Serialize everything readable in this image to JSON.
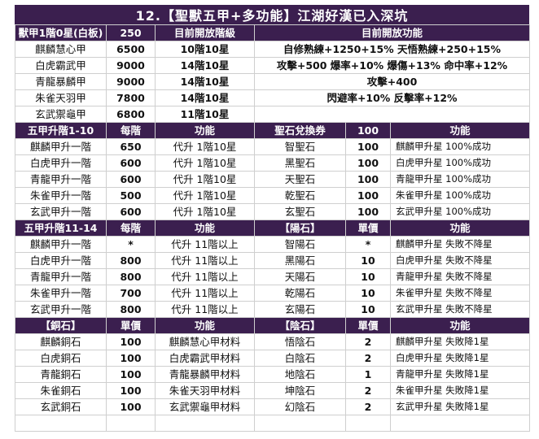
{
  "title": "12.【聖獸五甲+多功能】江湖好漢已入深坑",
  "armor": {
    "header": [
      "獸甲1階0星(白板)",
      "250",
      "目前開放階級",
      "目前開放功能"
    ],
    "rows": [
      {
        "name": "麒麟慧心甲",
        "value": "6500",
        "level": "10階10星",
        "func": "自修熟練+1250+15% 天悟熟練+250+15%"
      },
      {
        "name": "白虎霸武甲",
        "value": "9000",
        "level": "14階10星",
        "func": "攻擊+500 爆率+10% 爆傷+13% 命中率+12%"
      },
      {
        "name": "青龍暴麟甲",
        "value": "9000",
        "level": "14階10星",
        "func": "攻擊+400"
      },
      {
        "name": "朱雀天羽甲",
        "value": "7800",
        "level": "14階10星",
        "func": "閃避率+10% 反擊率+12%"
      },
      {
        "name": "玄武禦龜甲",
        "value": "6800",
        "level": "11階10星",
        "func": ""
      }
    ]
  },
  "upgrade1": {
    "header": [
      "五甲升階1-10",
      "每階",
      "功能",
      "聖石兌換券",
      "100",
      "功能"
    ],
    "rows": [
      [
        "麒麟甲升一階",
        "650",
        "代升 1階10星",
        "智聖石",
        "100",
        "麒麟甲升星 100%成功"
      ],
      [
        "白虎甲升一階",
        "600",
        "代升 1階10星",
        "黑聖石",
        "100",
        "白虎甲升星 100%成功"
      ],
      [
        "青龍甲升一階",
        "600",
        "代升 1階10星",
        "天聖石",
        "100",
        "青龍甲升星 100%成功"
      ],
      [
        "朱雀甲升一階",
        "500",
        "代升 1階10星",
        "乾聖石",
        "100",
        "朱雀甲升星 100%成功"
      ],
      [
        "玄武甲升一階",
        "600",
        "代升 1階10星",
        "玄聖石",
        "100",
        "玄武甲升星 100%成功"
      ]
    ]
  },
  "upgrade2": {
    "header": [
      "五甲升階11-14",
      "每階",
      "功能",
      "【陽石】",
      "單價",
      "功能"
    ],
    "rows": [
      [
        "麒麟甲升一階",
        "*",
        "代升 11階以上",
        "智陽石",
        "*",
        "麒麟甲升星 失敗不降星"
      ],
      [
        "白虎甲升一階",
        "800",
        "代升 11階以上",
        "黑陽石",
        "10",
        "白虎甲升星 失敗不降星"
      ],
      [
        "青龍甲升一階",
        "800",
        "代升 11階以上",
        "天陽石",
        "10",
        "青龍甲升星 失敗不降星"
      ],
      [
        "朱雀甲升一階",
        "700",
        "代升 11階以上",
        "乾陽石",
        "10",
        "朱雀甲升星 失敗不降星"
      ],
      [
        "玄武甲升一階",
        "800",
        "代升 11階以上",
        "玄陽石",
        "10",
        "玄武甲升星 失敗不降星"
      ]
    ]
  },
  "stones": {
    "header": [
      "【銅石】",
      "單價",
      "功能",
      "【陰石】",
      "單價",
      "功能"
    ],
    "rows": [
      [
        "麒麟銅石",
        "100",
        "麒麟慧心甲材料",
        "悟陰石",
        "2",
        "麒麟甲升星 失敗降1星"
      ],
      [
        "白虎銅石",
        "100",
        "白虎霸武甲材料",
        "白陰石",
        "2",
        "白虎甲升星 失敗降1星"
      ],
      [
        "青龍銅石",
        "100",
        "青龍暴麟甲材料",
        "地陰石",
        "1",
        "青龍甲升星 失敗降1星"
      ],
      [
        "朱雀銅石",
        "100",
        "朱雀天羽甲材料",
        "坤陰石",
        "2",
        "朱雀甲升星 失敗降1星"
      ],
      [
        "玄武銅石",
        "100",
        "玄武禦龜甲材料",
        "幻陰石",
        "2",
        "玄武甲升星 失敗降1星"
      ]
    ]
  },
  "colors": {
    "header_bg": "#3b1f4f",
    "header_text": "#ffffff",
    "grid": "#cfcfcf"
  }
}
